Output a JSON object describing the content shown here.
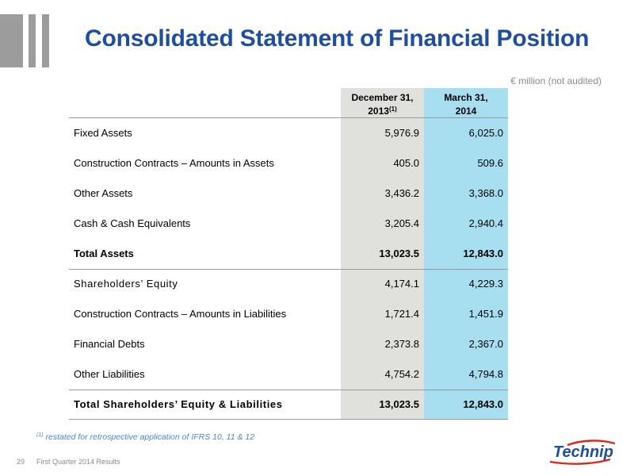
{
  "slide": {
    "title": "Consolidated Statement of Financial Position",
    "unit_note": "€ million (not audited)"
  },
  "table": {
    "columns": [
      {
        "line1": "December 31,",
        "line2": "2013",
        "note": "(1)"
      },
      {
        "line1": "March 31,",
        "line2": "2014",
        "note": ""
      }
    ],
    "rows": [
      {
        "label": "Fixed Assets",
        "v2013": "5,976.9",
        "v2014": "6,025.0"
      },
      {
        "label": "Construction Contracts – Amounts in Assets",
        "v2013": "405.0",
        "v2014": "509.6"
      },
      {
        "label": "Other Assets",
        "v2013": "3,436.2",
        "v2014": "3,368.0"
      },
      {
        "label": "Cash & Cash Equivalents",
        "v2013": "3,205.4",
        "v2014": "2,940.4"
      },
      {
        "label": "Total Assets",
        "v2013": "13,023.5",
        "v2014": "12,843.0"
      },
      {
        "label": "Shareholders’ Equity",
        "v2013": "4,174.1",
        "v2014": "4,229.3"
      },
      {
        "label": "Construction Contracts – Amounts in Liabilities",
        "v2013": "1,721.4",
        "v2014": "1,451.9"
      },
      {
        "label": "Financial Debts",
        "v2013": "2,373.8",
        "v2014": "2,367.0"
      },
      {
        "label": "Other Liabilities",
        "v2013": "4,754.2",
        "v2014": "4,794.8"
      },
      {
        "label": "Total Shareholders’ Equity & Liabilities",
        "v2013": "13,023.5",
        "v2014": "12,843.0"
      }
    ]
  },
  "footnote": {
    "marker": "(1)",
    "text": " restated for retrospective application of IFRS 10, 11 & 12"
  },
  "footer": {
    "page_number": "29",
    "text": "First Quarter 2014 Results"
  },
  "logo": {
    "text": "Technip"
  },
  "colors": {
    "title": "#1f4e9d",
    "col_2013_bg": "#e0e0dc",
    "col_2014_bg": "#a7dff0",
    "footnote": "#4a86c5",
    "logo_blue": "#1d4f9c",
    "logo_red": "#e2231a",
    "bars": "#9c9c9c"
  }
}
